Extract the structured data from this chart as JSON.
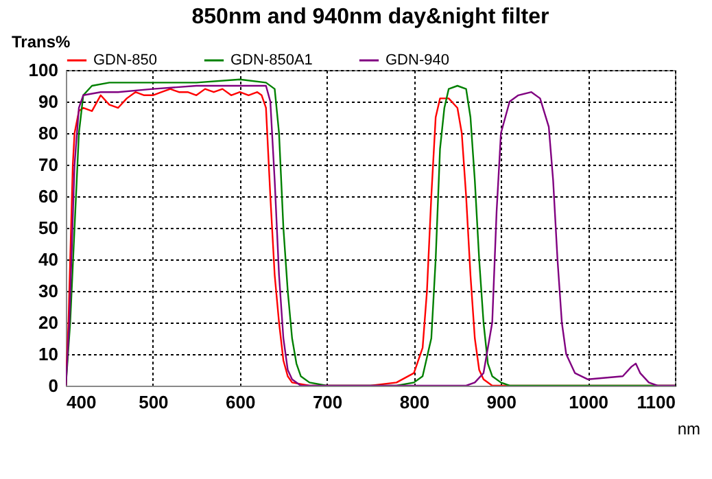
{
  "chart_data": {
    "type": "line",
    "title": "850nm and 940nm day&night filter",
    "xlabel": "nm",
    "ylabel": "Trans%",
    "xlim": [
      400,
      1100
    ],
    "xticks": [
      400,
      500,
      600,
      700,
      800,
      900,
      1000,
      1100
    ],
    "ylim": [
      0,
      100
    ],
    "yticks": [
      0,
      10,
      20,
      30,
      40,
      50,
      60,
      70,
      80,
      90,
      100
    ],
    "grid": true,
    "legend": "top",
    "line_style": "solid",
    "marker": "none",
    "series": [
      {
        "name": "GDN-850",
        "color": "#ff0000",
        "x": [
          400,
          403,
          405,
          408,
          410,
          415,
          420,
          430,
          440,
          450,
          460,
          470,
          480,
          490,
          500,
          510,
          520,
          530,
          540,
          550,
          560,
          570,
          580,
          590,
          600,
          610,
          620,
          625,
          630,
          635,
          640,
          645,
          650,
          655,
          660,
          680,
          700,
          750,
          780,
          800,
          810,
          815,
          820,
          825,
          830,
          840,
          850,
          855,
          860,
          865,
          870,
          875,
          880,
          890,
          1100
        ],
        "values": [
          0,
          20,
          40,
          70,
          80,
          87,
          88,
          87,
          92,
          89,
          88,
          91,
          93,
          92,
          92,
          93,
          94,
          93,
          93,
          92,
          94,
          93,
          94,
          92,
          93,
          92,
          93,
          92,
          88,
          60,
          35,
          20,
          8,
          3,
          1,
          0,
          0,
          0,
          1,
          4,
          12,
          30,
          60,
          85,
          91,
          91,
          88,
          80,
          60,
          35,
          15,
          5,
          2,
          0,
          0
        ]
      },
      {
        "name": "GDN-850A1",
        "color": "#008000",
        "x": [
          400,
          405,
          410,
          415,
          420,
          430,
          450,
          500,
          550,
          600,
          630,
          640,
          645,
          650,
          655,
          660,
          665,
          670,
          680,
          700,
          780,
          800,
          810,
          820,
          825,
          830,
          835,
          840,
          850,
          860,
          865,
          870,
          875,
          880,
          885,
          890,
          900,
          910,
          1100
        ],
        "values": [
          0,
          20,
          50,
          80,
          92,
          95,
          96,
          96,
          96,
          97,
          96,
          94,
          80,
          50,
          30,
          15,
          7,
          3,
          1,
          0,
          0,
          1,
          3,
          15,
          40,
          75,
          88,
          94,
          95,
          94,
          85,
          65,
          40,
          20,
          7,
          3,
          1,
          0,
          0
        ]
      },
      {
        "name": "GDN-940",
        "color": "#800080",
        "x": [
          400,
          404,
          410,
          415,
          420,
          440,
          460,
          500,
          550,
          600,
          630,
          635,
          640,
          645,
          650,
          655,
          660,
          670,
          860,
          870,
          880,
          890,
          895,
          900,
          910,
          920,
          935,
          945,
          955,
          960,
          965,
          970,
          975,
          985,
          1000,
          1040,
          1050,
          1055,
          1060,
          1070,
          1080,
          1100
        ],
        "values": [
          0,
          20,
          70,
          88,
          92,
          93,
          93,
          94,
          95,
          95,
          95,
          90,
          65,
          35,
          15,
          5,
          2,
          0,
          0,
          1,
          4,
          20,
          55,
          80,
          90,
          92,
          93,
          91,
          82,
          65,
          40,
          20,
          10,
          4,
          2,
          3,
          6,
          7,
          4,
          1,
          0,
          0
        ]
      }
    ]
  }
}
